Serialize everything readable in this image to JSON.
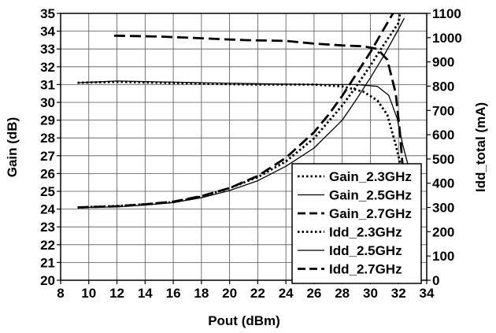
{
  "chart_data": {
    "type": "line",
    "xlabel": "Pout (dBm)",
    "ylabel_left": "Gain (dB)",
    "ylabel_right": "Idd_total (mA)",
    "xlim": [
      8,
      34
    ],
    "ylim_left": [
      20,
      35
    ],
    "ylim_right": [
      0,
      1100
    ],
    "x_ticks": [
      "8",
      "10",
      "12",
      "14",
      "16",
      "18",
      "20",
      "22",
      "24",
      "26",
      "28",
      "30",
      "32",
      "34"
    ],
    "y_ticks_left": [
      "20",
      "21",
      "22",
      "23",
      "24",
      "25",
      "26",
      "27",
      "28",
      "29",
      "30",
      "31",
      "32",
      "33",
      "34",
      "35"
    ],
    "y_ticks_right": [
      "0",
      "100",
      "200",
      "300",
      "400",
      "500",
      "600",
      "700",
      "800",
      "900",
      "1000",
      "1100"
    ],
    "grid": true,
    "legend_position": "bottom-right",
    "series": [
      {
        "name": "Gain_2.3GHz",
        "axis": "left",
        "style": "dotted",
        "points": [
          [
            9.2,
            31.1
          ],
          [
            12,
            31.15
          ],
          [
            15,
            31.1
          ],
          [
            18,
            31.05
          ],
          [
            22,
            31.0
          ],
          [
            26,
            31.0
          ],
          [
            28,
            30.9
          ],
          [
            29.5,
            30.6
          ],
          [
            30.5,
            30.1
          ],
          [
            31.2,
            29.3
          ],
          [
            31.8,
            27.6
          ],
          [
            32.2,
            26.3
          ],
          [
            32.4,
            25.9
          ]
        ]
      },
      {
        "name": "Gain_2.5GHz",
        "axis": "left",
        "style": "solid",
        "points": [
          [
            9.2,
            31.1
          ],
          [
            12,
            31.2
          ],
          [
            15,
            31.15
          ],
          [
            18,
            31.1
          ],
          [
            22,
            31.05
          ],
          [
            26,
            31.0
          ],
          [
            29,
            31.0
          ],
          [
            30.5,
            30.9
          ],
          [
            31.3,
            30.4
          ],
          [
            31.9,
            29.1
          ],
          [
            32.3,
            27.6
          ],
          [
            32.7,
            26.4
          ]
        ]
      },
      {
        "name": "Gain_2.7GHz",
        "axis": "left",
        "style": "dashed",
        "points": [
          [
            11.8,
            33.75
          ],
          [
            15,
            33.7
          ],
          [
            18,
            33.6
          ],
          [
            21,
            33.5
          ],
          [
            24,
            33.45
          ],
          [
            26,
            33.3
          ],
          [
            28,
            33.2
          ],
          [
            29.5,
            33.15
          ],
          [
            30.5,
            33.0
          ],
          [
            31.2,
            32.4
          ],
          [
            31.8,
            30.5
          ],
          [
            32.1,
            28.3
          ],
          [
            32.3,
            26.3
          ]
        ]
      },
      {
        "name": "Idd_2.3GHz",
        "axis": "right",
        "style": "dotted",
        "points": [
          [
            9.2,
            300
          ],
          [
            12,
            306
          ],
          [
            14,
            313
          ],
          [
            16,
            322
          ],
          [
            18,
            345
          ],
          [
            20,
            380
          ],
          [
            22,
            425
          ],
          [
            24,
            490
          ],
          [
            26,
            585
          ],
          [
            28,
            720
          ],
          [
            29,
            800
          ],
          [
            30,
            885
          ],
          [
            31,
            975
          ],
          [
            32,
            1060
          ],
          [
            32.1,
            1100
          ]
        ]
      },
      {
        "name": "Idd_2.5GHz",
        "axis": "right",
        "style": "solid",
        "points": [
          [
            9.2,
            300
          ],
          [
            12,
            302
          ],
          [
            14,
            310
          ],
          [
            16,
            320
          ],
          [
            18,
            340
          ],
          [
            20,
            370
          ],
          [
            22,
            410
          ],
          [
            24,
            470
          ],
          [
            26,
            545
          ],
          [
            28,
            660
          ],
          [
            29,
            745
          ],
          [
            30,
            835
          ],
          [
            31,
            930
          ],
          [
            32,
            1035
          ],
          [
            32.4,
            1080
          ]
        ]
      },
      {
        "name": "Idd_2.7GHz",
        "axis": "right",
        "style": "dashed",
        "points": [
          [
            9.2,
            300
          ],
          [
            12,
            305
          ],
          [
            14,
            313
          ],
          [
            16,
            324
          ],
          [
            18,
            347
          ],
          [
            20,
            380
          ],
          [
            22,
            430
          ],
          [
            24,
            505
          ],
          [
            26,
            610
          ],
          [
            27,
            680
          ],
          [
            28,
            760
          ],
          [
            29,
            850
          ],
          [
            30,
            940
          ],
          [
            31,
            1040
          ],
          [
            31.6,
            1100
          ]
        ]
      }
    ]
  }
}
